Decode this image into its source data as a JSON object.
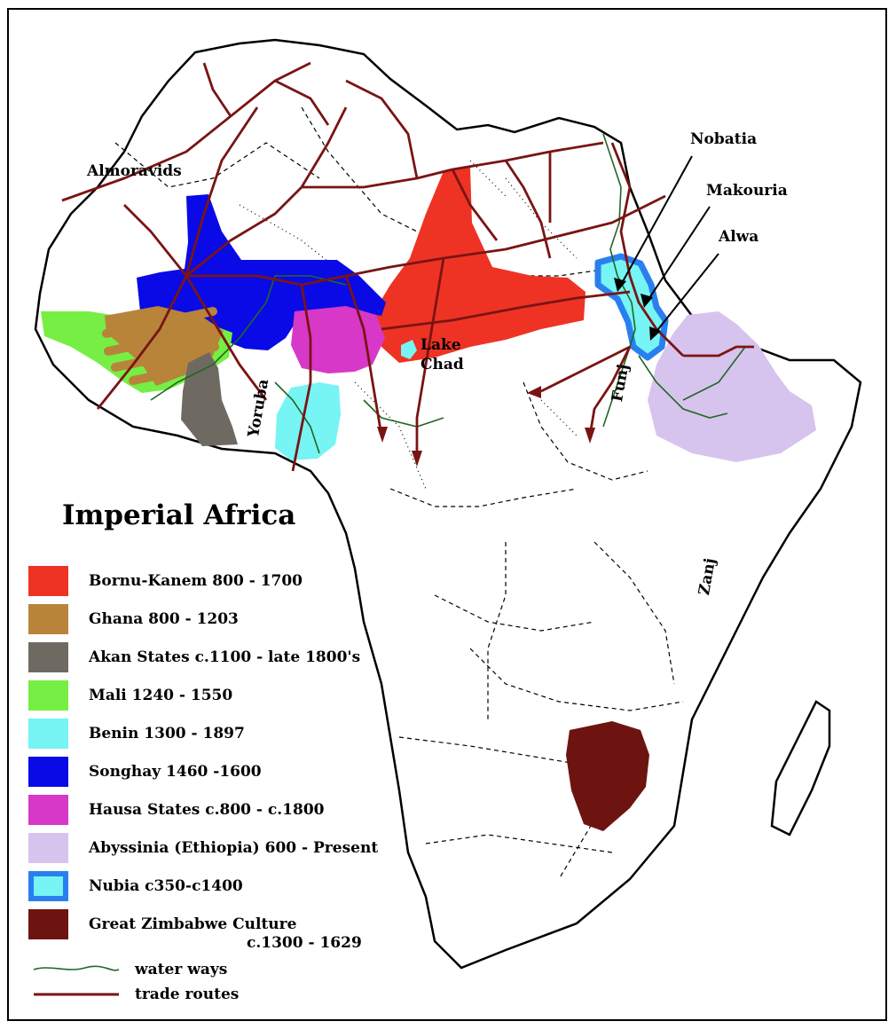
{
  "title": "Imperial Africa",
  "colors": {
    "bornu_kanem": "#ee3324",
    "ghana": "#b7843a",
    "akan": "#6e6a62",
    "mali": "#77ee44",
    "benin": "#77f4f4",
    "songhay": "#0a0ae6",
    "hausa": "#d838c8",
    "abyssinia": "#d6c4ee",
    "nubia_fill": "#77f4f4",
    "nubia_border": "#2a7fee",
    "zimbabwe": "#6e1410",
    "water": "#226622",
    "trade": "#7a1414"
  },
  "legend": [
    {
      "key": "bornu_kanem",
      "label": "Bornu-Kanem 800 - 1700"
    },
    {
      "key": "ghana",
      "label": "Ghana 800 - 1203"
    },
    {
      "key": "akan",
      "label": "Akan States c.1100 - late 1800's"
    },
    {
      "key": "mali",
      "label": "Mali 1240 - 1550"
    },
    {
      "key": "benin",
      "label": "Benin 1300 - 1897"
    },
    {
      "key": "songhay",
      "label": "Songhay 1460 -1600"
    },
    {
      "key": "hausa",
      "label": "Hausa States c.800 - c.1800"
    },
    {
      "key": "abyssinia",
      "label": "Abyssinia (Ethiopia) 600 - Present"
    },
    {
      "key": "nubia",
      "label": "Nubia c350-c1400"
    },
    {
      "key": "zimbabwe",
      "label": "Great Zimbabwe Culture"
    }
  ],
  "legend_zimbabwe_dates": "c.1300 - 1629",
  "legend_lines": {
    "water": "water ways",
    "trade": "trade routes"
  },
  "labels": {
    "almoravids": "Almoravids",
    "nobatia": "Nobatia",
    "makouria": "Makouria",
    "alwa": "Alwa",
    "lake": "Lake",
    "chad": "Chad",
    "funj": "Funj",
    "yoruba": "Yoruba",
    "zanj": "Zanj"
  }
}
